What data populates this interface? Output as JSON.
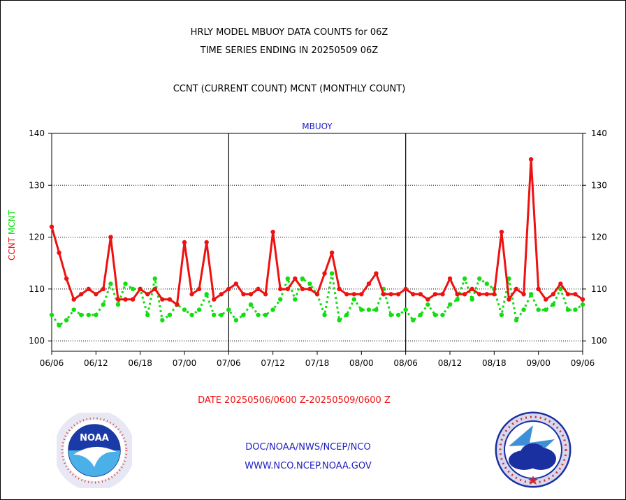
{
  "header": {
    "line1": "HRLY MODEL MBUOY DATA COUNTS for 06Z",
    "line2": "TIME SERIES ENDING IN 20250509 06Z",
    "line3": "CCNT (CURRENT COUNT) MCNT (MONTHLY COUNT)"
  },
  "footer": {
    "date_range": "DATE 20250506/0600 Z-20250509/0600 Z",
    "org": "DOC/NOAA/NWS/NCEP/NCO",
    "url": "WWW.NCO.NCEP.NOAA.GOV"
  },
  "logos": {
    "left": {
      "icon": "noaa-logo-icon",
      "text": "NOAA"
    },
    "right": {
      "icon": "nws-logo-icon"
    }
  },
  "colors": {
    "ccnt": "#ee1111",
    "mcnt": "#11dd11",
    "text_blue": "#2020c0"
  },
  "chart_data": {
    "type": "line",
    "title": "MBUOY",
    "ylabel": [
      "CCNT",
      "MCNT"
    ],
    "ylim": [
      98,
      140
    ],
    "yticks": [
      100,
      110,
      120,
      130,
      140
    ],
    "xticks": [
      "06/06",
      "06/12",
      "06/18",
      "07/00",
      "07/06",
      "07/12",
      "07/18",
      "08/00",
      "08/06",
      "08/12",
      "08/18",
      "09/00",
      "09/06"
    ],
    "x_points": 73,
    "grid": true,
    "series": [
      {
        "name": "CCNT",
        "color": "#ee1111",
        "values": [
          122,
          117,
          112,
          108,
          109,
          110,
          109,
          110,
          120,
          108,
          108,
          108,
          110,
          109,
          110,
          108,
          108,
          107,
          119,
          109,
          110,
          119,
          108,
          109,
          110,
          111,
          109,
          109,
          110,
          109,
          121,
          110,
          110,
          112,
          110,
          110,
          109,
          113,
          117,
          110,
          109,
          109,
          109,
          111,
          113,
          109,
          109,
          109,
          110,
          109,
          109,
          108,
          109,
          109,
          112,
          109,
          109,
          110,
          109,
          109,
          109,
          121,
          108,
          110,
          109,
          135,
          110,
          108,
          109,
          111,
          109,
          109,
          108
        ]
      },
      {
        "name": "MCNT",
        "color": "#11dd11",
        "values": [
          105,
          103,
          104,
          106,
          105,
          105,
          105,
          107,
          111,
          107,
          111,
          110,
          110,
          105,
          112,
          104,
          105,
          107,
          106,
          105,
          106,
          109,
          105,
          105,
          106,
          104,
          105,
          107,
          105,
          105,
          106,
          108,
          112,
          108,
          112,
          111,
          109,
          105,
          113,
          104,
          105,
          108,
          106,
          106,
          106,
          110,
          105,
          105,
          106,
          104,
          105,
          107,
          105,
          105,
          107,
          108,
          112,
          108,
          112,
          111,
          110,
          105,
          112,
          104,
          106,
          109,
          106,
          106,
          107,
          110,
          106,
          106,
          107
        ]
      }
    ]
  }
}
